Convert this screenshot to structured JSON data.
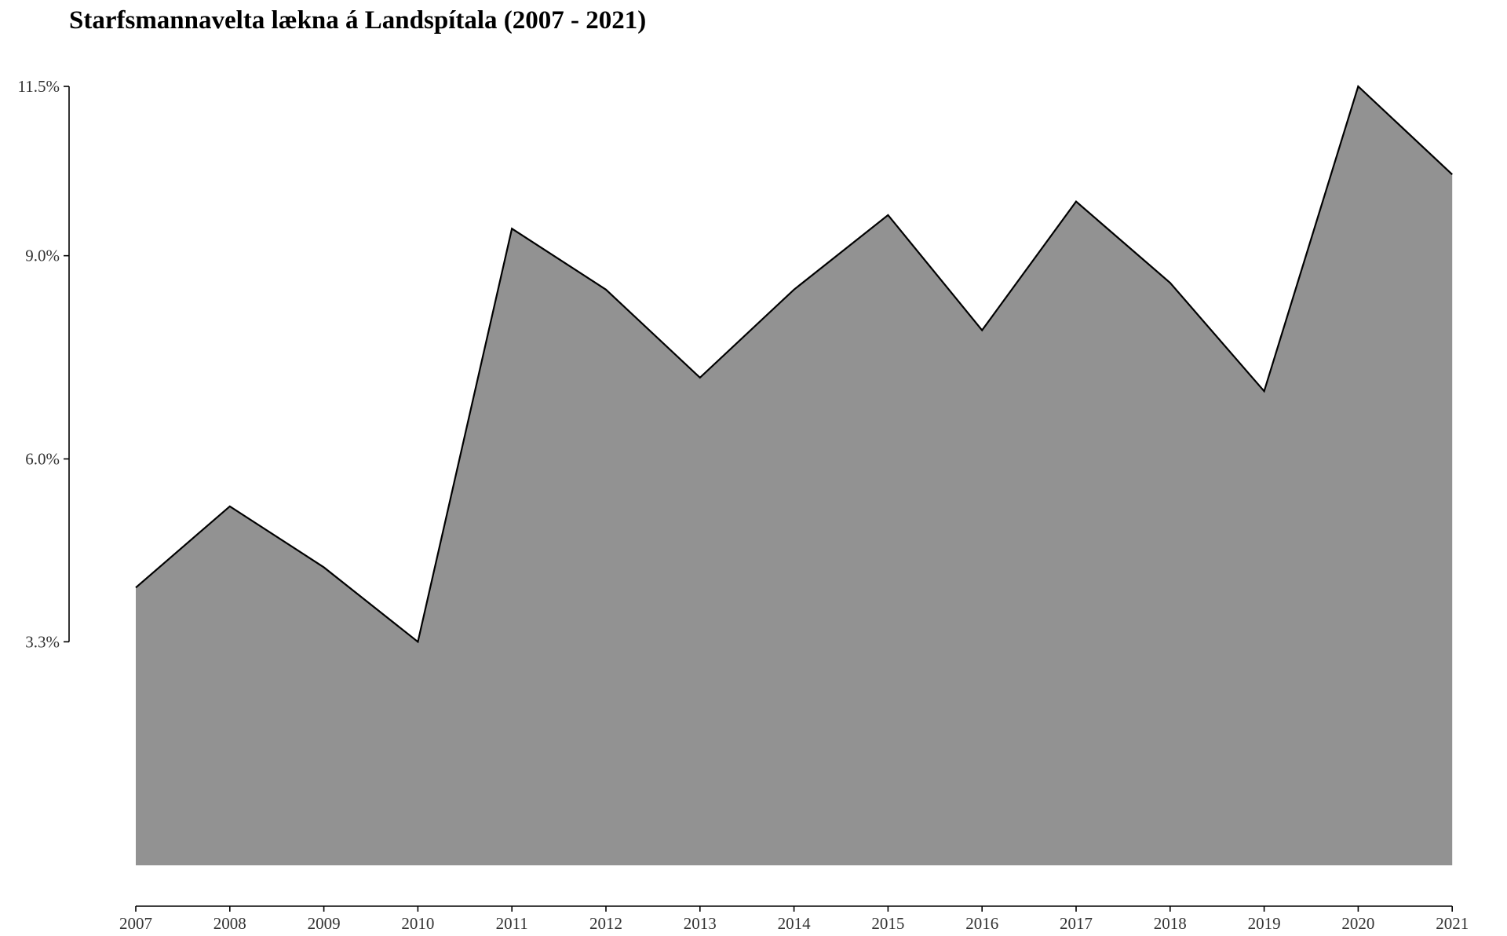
{
  "chart_data": {
    "type": "area",
    "title": "Starfsmannavelta lækna á Landspítala (2007 - 2021)",
    "xlabel": "",
    "ylabel": "",
    "x": [
      "2007",
      "2008",
      "2009",
      "2010",
      "2011",
      "2012",
      "2013",
      "2014",
      "2015",
      "2016",
      "2017",
      "2018",
      "2019",
      "2020",
      "2021"
    ],
    "series": [
      {
        "values": [
          4.1,
          5.3,
          4.4,
          3.3,
          9.4,
          8.5,
          7.2,
          8.5,
          9.6,
          7.9,
          9.8,
          8.6,
          7.0,
          11.5,
          10.2
        ]
      }
    ],
    "ylim": [
      0,
      11.5
    ],
    "y_ticks": [
      {
        "value": 3.3,
        "label": "3.3%"
      },
      {
        "value": 6.0,
        "label": "6.0%"
      },
      {
        "value": 9.0,
        "label": "9.0%"
      },
      {
        "value": 11.5,
        "label": "11.5%"
      }
    ],
    "grid": false,
    "legend": "none",
    "colors": {
      "fill": "#929292",
      "line": "#000000",
      "axis": "#000000",
      "tick_text": "#333333"
    }
  }
}
